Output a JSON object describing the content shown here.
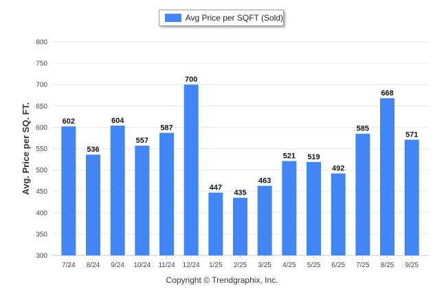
{
  "legend": {
    "label": "Avg Price per SQFT (Sold)",
    "color": "#4285f4"
  },
  "footer": {
    "copyright": "Copyright © Trendgraphix, Inc."
  },
  "chart_data": {
    "type": "bar",
    "title": "",
    "xlabel": "",
    "ylabel": "Avg. Price per SQ. FT.",
    "ylim": [
      300,
      800
    ],
    "yticks": [
      300,
      350,
      400,
      450,
      500,
      550,
      600,
      650,
      700,
      750,
      800
    ],
    "grid": true,
    "bar_color": "#4285f4",
    "categories": [
      "7/24",
      "8/24",
      "9/24",
      "10/24",
      "11/24",
      "12/24",
      "1/25",
      "2/25",
      "3/25",
      "4/25",
      "5/25",
      "6/25",
      "7/25",
      "8/25",
      "9/25"
    ],
    "series": [
      {
        "name": "Avg Price per SQFT (Sold)",
        "values": [
          602,
          536,
          604,
          557,
          587,
          700,
          447,
          435,
          463,
          521,
          519,
          492,
          585,
          668,
          571
        ]
      }
    ]
  }
}
